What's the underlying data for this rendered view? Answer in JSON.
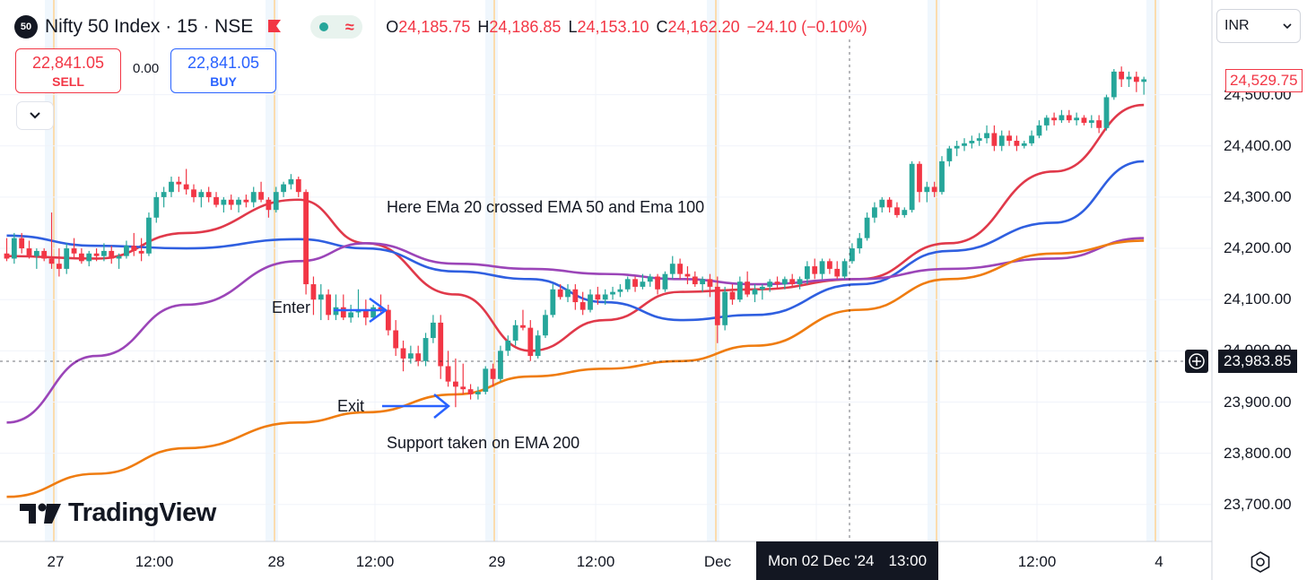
{
  "header": {
    "symbol_badge": "50",
    "symbol_title": "Nifty 50 Index · 15 · NSE",
    "status_wave": "≈",
    "ohlc": [
      {
        "k": "O",
        "v": "24,185.75"
      },
      {
        "k": "H",
        "v": "24,186.85"
      },
      {
        "k": "L",
        "v": "24,153.10"
      },
      {
        "k": "C",
        "v": "24,162.20"
      },
      {
        "k": "",
        "v": "−24.10 (−0.10%)"
      }
    ]
  },
  "trade": {
    "sell_price": "22,841.05",
    "sell_label": "SELL",
    "spread": "0.00",
    "buy_price": "22,841.05",
    "buy_label": "BUY"
  },
  "currency": "INR",
  "annotations": {
    "ema_cross": "Here EMa 20 crossed EMA 50 and Ema 100",
    "enter": "Enter",
    "exit": "Exit",
    "support": "Support taken on EMA 200"
  },
  "logo": "TradingView",
  "price_tags": {
    "last_price": "24,529.75",
    "crosshair_price": "23,983.85",
    "crosshair_time_date": "Mon 02 Dec '24",
    "crosshair_time_hour": "13:00"
  },
  "colors": {
    "up": "#26a69a",
    "down": "#f23645",
    "ema20": "#e0394a",
    "ema50": "#2f5fe0",
    "ema100": "#9b45b8",
    "ema200": "#ef7c10"
  },
  "chart_data": {
    "type": "candlestick",
    "symbol": "Nifty 50 Index",
    "interval": "15",
    "exchange": "NSE",
    "y_ticks": [
      24400,
      24300,
      24200,
      24100,
      23900,
      23800,
      23700
    ],
    "y_tick_labels": [
      "24,400.00",
      "24,300.00",
      "24,200.00",
      "24,100.00",
      "23,900.00",
      "23,800.00",
      "23,700.00"
    ],
    "y_partial_ticks": [
      "24,500.00",
      "24,000.00"
    ],
    "x_tick_labels": [
      "27",
      "12:00",
      "28",
      "12:00",
      "29",
      "12:00",
      "Dec",
      "12:00",
      "4"
    ],
    "candles": [
      [
        24190,
        24220,
        24175,
        24180
      ],
      [
        24180,
        24230,
        24170,
        24220
      ],
      [
        24220,
        24230,
        24190,
        24200
      ],
      [
        24200,
        24215,
        24180,
        24185
      ],
      [
        24185,
        24200,
        24160,
        24195
      ],
      [
        24195,
        24200,
        24175,
        24180
      ],
      [
        24180,
        24270,
        24160,
        24170
      ],
      [
        24170,
        24200,
        24145,
        24160
      ],
      [
        24160,
        24210,
        24150,
        24200
      ],
      [
        24200,
        24220,
        24180,
        24190
      ],
      [
        24190,
        24200,
        24170,
        24175
      ],
      [
        24175,
        24195,
        24165,
        24190
      ],
      [
        24190,
        24200,
        24175,
        24185
      ],
      [
        24185,
        24210,
        24175,
        24195
      ],
      [
        24195,
        24205,
        24170,
        24180
      ],
      [
        24180,
        24190,
        24160,
        24185
      ],
      [
        24185,
        24215,
        24180,
        24205
      ],
      [
        24205,
        24230,
        24185,
        24195
      ],
      [
        24195,
        24220,
        24175,
        24190
      ],
      [
        24190,
        24270,
        24185,
        24260
      ],
      [
        24260,
        24310,
        24250,
        24300
      ],
      [
        24300,
        24320,
        24280,
        24310
      ],
      [
        24310,
        24340,
        24300,
        24330
      ],
      [
        24330,
        24340,
        24310,
        24325
      ],
      [
        24325,
        24355,
        24305,
        24315
      ],
      [
        24315,
        24325,
        24290,
        24300
      ],
      [
        24300,
        24315,
        24280,
        24310
      ],
      [
        24310,
        24320,
        24290,
        24300
      ],
      [
        24300,
        24310,
        24280,
        24285
      ],
      [
        24285,
        24300,
        24270,
        24295
      ],
      [
        24295,
        24305,
        24275,
        24285
      ],
      [
        24285,
        24300,
        24270,
        24295
      ],
      [
        24295,
        24305,
        24280,
        24290
      ],
      [
        24290,
        24320,
        24280,
        24310
      ],
      [
        24310,
        24330,
        24290,
        24295
      ],
      [
        24295,
        24300,
        24260,
        24275
      ],
      [
        24275,
        24320,
        24270,
        24310
      ],
      [
        24310,
        24330,
        24300,
        24325
      ],
      [
        24325,
        24345,
        24315,
        24335
      ],
      [
        24335,
        24340,
        24300,
        24310
      ],
      [
        24310,
        24315,
        24110,
        24130
      ],
      [
        24130,
        24145,
        24070,
        24100
      ],
      [
        24100,
        24130,
        24060,
        24110
      ],
      [
        24110,
        24120,
        24060,
        24070
      ],
      [
        24070,
        24110,
        24060,
        24085
      ],
      [
        24085,
        24110,
        24060,
        24065
      ],
      [
        24065,
        24090,
        24055,
        24075
      ],
      [
        24075,
        24120,
        24065,
        24080
      ],
      [
        24080,
        24100,
        24050,
        24065
      ],
      [
        24065,
        24090,
        24060,
        24085
      ],
      [
        24085,
        24110,
        24075,
        24080
      ],
      [
        24080,
        24090,
        24030,
        24040
      ],
      [
        24040,
        24060,
        23990,
        24005
      ],
      [
        24005,
        24020,
        23960,
        23985
      ],
      [
        23985,
        24010,
        23975,
        23995
      ],
      [
        23995,
        24010,
        23970,
        23980
      ],
      [
        23980,
        24035,
        23970,
        24025
      ],
      [
        24025,
        24070,
        24015,
        24055
      ],
      [
        24055,
        24070,
        23945,
        23970
      ],
      [
        23970,
        24000,
        23930,
        23940
      ],
      [
        23940,
        23985,
        23890,
        23930
      ],
      [
        23930,
        23975,
        23915,
        23925
      ],
      [
        23925,
        23935,
        23905,
        23915
      ],
      [
        23915,
        23930,
        23905,
        23920
      ],
      [
        23920,
        23970,
        23915,
        23965
      ],
      [
        23965,
        23975,
        23930,
        23945
      ],
      [
        23945,
        24010,
        23940,
        24000
      ],
      [
        24000,
        24030,
        23990,
        24020
      ],
      [
        24020,
        24060,
        24010,
        24050
      ],
      [
        24050,
        24080,
        24040,
        24045
      ],
      [
        24045,
        24060,
        23980,
        23990
      ],
      [
        23990,
        24040,
        23985,
        24030
      ],
      [
        24030,
        24080,
        24025,
        24070
      ],
      [
        24070,
        24130,
        24065,
        24120
      ],
      [
        24120,
        24130,
        24100,
        24105
      ],
      [
        24105,
        24130,
        24095,
        24120
      ],
      [
        24120,
        24130,
        24080,
        24095
      ],
      [
        24095,
        24115,
        24070,
        24080
      ],
      [
        24080,
        24120,
        24075,
        24110
      ],
      [
        24110,
        24125,
        24090,
        24100
      ],
      [
        24100,
        24120,
        24090,
        24110
      ],
      [
        24110,
        24125,
        24100,
        24115
      ],
      [
        24115,
        24130,
        24105,
        24120
      ],
      [
        24120,
        24145,
        24115,
        24140
      ],
      [
        24140,
        24145,
        24115,
        24125
      ],
      [
        24125,
        24150,
        24120,
        24135
      ],
      [
        24135,
        24150,
        24125,
        24145
      ],
      [
        24145,
        24150,
        24110,
        24120
      ],
      [
        24120,
        24155,
        24115,
        24150
      ],
      [
        24150,
        24185,
        24140,
        24170
      ],
      [
        24170,
        24180,
        24140,
        24150
      ],
      [
        24150,
        24165,
        24130,
        24145
      ],
      [
        24145,
        24155,
        24125,
        24130
      ],
      [
        24130,
        24145,
        24115,
        24140
      ],
      [
        24140,
        24150,
        24105,
        24125
      ],
      [
        24125,
        24145,
        24015,
        24050
      ],
      [
        24050,
        24125,
        24040,
        24115
      ],
      [
        24115,
        24130,
        24090,
        24100
      ],
      [
        24100,
        24145,
        24095,
        24135
      ],
      [
        24135,
        24155,
        24105,
        24110
      ],
      [
        24110,
        24130,
        24095,
        24120
      ],
      [
        24120,
        24130,
        24100,
        24125
      ],
      [
        24125,
        24140,
        24115,
        24135
      ],
      [
        24135,
        24145,
        24120,
        24130
      ],
      [
        24130,
        24145,
        24120,
        24140
      ],
      [
        24140,
        24150,
        24125,
        24130
      ],
      [
        24130,
        24145,
        24120,
        24140
      ],
      [
        24140,
        24175,
        24130,
        24165
      ],
      [
        24165,
        24180,
        24140,
        24150
      ],
      [
        24150,
        24180,
        24140,
        24175
      ],
      [
        24175,
        24180,
        24150,
        24160
      ],
      [
        24160,
        24175,
        24140,
        24145
      ],
      [
        24145,
        24180,
        24140,
        24175
      ],
      [
        24175,
        24210,
        24170,
        24200
      ],
      [
        24200,
        24230,
        24190,
        24220
      ],
      [
        24220,
        24270,
        24215,
        24260
      ],
      [
        24260,
        24290,
        24250,
        24280
      ],
      [
        24280,
        24300,
        24270,
        24295
      ],
      [
        24295,
        24300,
        24270,
        24280
      ],
      [
        24280,
        24290,
        24260,
        24265
      ],
      [
        24265,
        24280,
        24260,
        24275
      ],
      [
        24275,
        24370,
        24270,
        24365
      ],
      [
        24365,
        24370,
        24290,
        24310
      ],
      [
        24310,
        24330,
        24290,
        24320
      ],
      [
        24320,
        24330,
        24300,
        24310
      ],
      [
        24310,
        24380,
        24305,
        24370
      ],
      [
        24370,
        24400,
        24360,
        24395
      ],
      [
        24395,
        24410,
        24380,
        24400
      ],
      [
        24400,
        24415,
        24390,
        24405
      ],
      [
        24405,
        24420,
        24395,
        24410
      ],
      [
        24410,
        24425,
        24400,
        24415
      ],
      [
        24415,
        24440,
        24405,
        24425
      ],
      [
        24425,
        24440,
        24390,
        24400
      ],
      [
        24400,
        24430,
        24390,
        24420
      ],
      [
        24420,
        24430,
        24400,
        24410
      ],
      [
        24410,
        24420,
        24390,
        24400
      ],
      [
        24400,
        24410,
        24395,
        24405
      ],
      [
        24405,
        24430,
        24400,
        24420
      ],
      [
        24420,
        24450,
        24415,
        24440
      ],
      [
        24440,
        24460,
        24430,
        24455
      ],
      [
        24455,
        24465,
        24440,
        24450
      ],
      [
        24450,
        24470,
        24445,
        24460
      ],
      [
        24460,
        24470,
        24445,
        24450
      ],
      [
        24450,
        24465,
        24440,
        24455
      ],
      [
        24455,
        24460,
        24440,
        24445
      ],
      [
        24445,
        24460,
        24435,
        24450
      ],
      [
        24450,
        24460,
        24425,
        24435
      ],
      [
        24435,
        24500,
        24430,
        24495
      ],
      [
        24495,
        24550,
        24490,
        24545
      ],
      [
        24545,
        24555,
        24515,
        24530
      ],
      [
        24530,
        24545,
        24515,
        24535
      ],
      [
        24535,
        24545,
        24505,
        24525
      ],
      [
        24525,
        24535,
        24500,
        24530
      ]
    ],
    "ema": [
      {
        "name": "EMA 20",
        "color": "#e0394a",
        "x": [
          0,
          12,
          24,
          39,
          48,
          60,
          70,
          80,
          90,
          100,
          114,
          126,
          140,
          152
        ],
        "y": [
          24185,
          24180,
          24230,
          24295,
          24210,
          24110,
          24000,
          24060,
          24115,
          24120,
          24140,
          24210,
          24350,
          24480
        ]
      },
      {
        "name": "EMA 50",
        "color": "#2f5fe0",
        "x": [
          0,
          12,
          24,
          39,
          48,
          60,
          70,
          80,
          90,
          100,
          114,
          126,
          140,
          152
        ],
        "y": [
          24225,
          24205,
          24200,
          24218,
          24200,
          24155,
          24140,
          24095,
          24060,
          24070,
          24130,
          24195,
          24250,
          24370
        ]
      },
      {
        "name": "EMA 100",
        "color": "#9b45b8",
        "x": [
          0,
          12,
          24,
          39,
          48,
          60,
          70,
          80,
          90,
          100,
          114,
          126,
          140,
          152
        ],
        "y": [
          23860,
          23990,
          24090,
          24175,
          24210,
          24170,
          24160,
          24150,
          24140,
          24130,
          24140,
          24160,
          24180,
          24220
        ]
      },
      {
        "name": "EMA 200",
        "color": "#ef7c10",
        "x": [
          0,
          12,
          24,
          39,
          48,
          60,
          70,
          80,
          90,
          100,
          114,
          126,
          140,
          152
        ],
        "y": [
          23715,
          23760,
          23810,
          23860,
          23880,
          23915,
          23950,
          23965,
          23980,
          24010,
          24080,
          24140,
          24190,
          24215
        ]
      }
    ]
  }
}
